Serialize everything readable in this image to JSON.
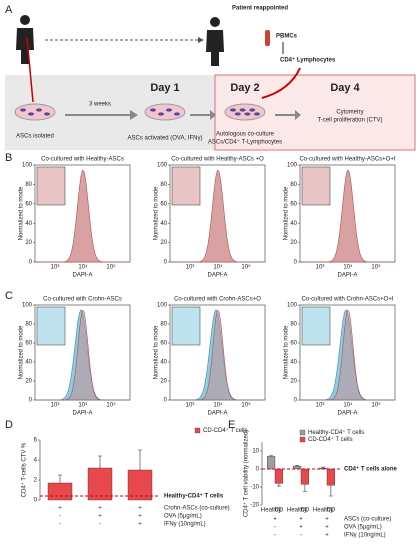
{
  "panel_a": {
    "label": "A",
    "patient": "Patient reappointed",
    "pbmcs": "PBMCs",
    "cd4": "CD4⁺ Lymphocytes",
    "isolated": "ASCs isolated",
    "weeks": "3 weeks",
    "day1": "Day 1",
    "activated": "ASCs activated (OVA, IFNγ)",
    "day2": "Day 2",
    "day4": "Day 4",
    "coculture": [
      "Autologous co-culture",
      "ASCs/CD4⁺ T-Lymphocytes"
    ],
    "cytometry": [
      "Cytometry",
      "T-cell proliferation (CTV)"
    ]
  },
  "histogram_axes": {
    "ylabel": "Normalized to mode",
    "xlabel": "DAPI-A",
    "yticks": [
      0,
      20,
      40,
      60,
      80,
      100
    ],
    "xticks": [
      "10³",
      "10⁴",
      "10⁵"
    ]
  },
  "panel_b": {
    "label": "B",
    "titles": [
      "Co-cultured with Healthy-ASCs",
      "Co-cultured with Healthy-ASCs +O",
      "Co-cultured with Healthy-ASCs+O+I"
    ]
  },
  "panel_c": {
    "label": "C",
    "titles": [
      "Co-cultured with Crohn-ASCs",
      "Co-cultured with Crohn-ASCs+O",
      "Co-cultured with Crohn-ASCs+O+I"
    ]
  },
  "panel_d": {
    "label": "D",
    "type": "bar",
    "ylabel": "CD4⁺ T-cells CTV %",
    "ylim": [
      0,
      6
    ],
    "yticks": [
      0,
      2,
      4,
      6
    ],
    "series": [
      {
        "name": "CD-CD4⁺ T cells",
        "color": "#e8474c",
        "values": [
          1.7,
          3.2,
          3.0
        ],
        "errors": [
          0.8,
          1.2,
          2.0
        ]
      }
    ],
    "baseline": {
      "label": "Healthy-CD4⁺ T cells",
      "value": 0.4
    },
    "conditions": [
      {
        "name": "Crohn-ASCs (co-culture)",
        "signs": [
          "+",
          "+",
          "+"
        ]
      },
      {
        "name": "OVA (5µg/mL)",
        "signs": [
          "-",
          "+",
          "+"
        ]
      },
      {
        "name": "IFNγ (10ng/mL)",
        "signs": [
          "-",
          "-",
          "+"
        ]
      }
    ]
  },
  "panel_e": {
    "label": "E",
    "type": "bar",
    "ylabel": "CD4⁺ T cell viability (normalized)",
    "ylim": [
      -20,
      15
    ],
    "yticks": [
      -20,
      -10,
      0,
      10
    ],
    "groups": [
      [
        "Healthy",
        "CD"
      ],
      [
        "Healthy",
        "CD"
      ],
      [
        "Healthy",
        "CD"
      ]
    ],
    "series": [
      {
        "name": "Healthy-CD4⁺ T cells",
        "color": "#9e9e9e",
        "values": [
          7,
          1.5,
          0.5
        ],
        "errors": [
          0.5,
          0.5,
          0.5
        ]
      },
      {
        "name": "CD-CD4⁺ T cells",
        "color": "#e8474c",
        "values": [
          -8,
          -8.5,
          -9
        ],
        "errors": [
          1.5,
          4,
          6
        ]
      }
    ],
    "baseline": {
      "label": "CD4⁺ T cells alone",
      "value": 0
    },
    "conditions": [
      {
        "name": "ASCs (co-culture)",
        "signs": [
          "+",
          "+",
          "+"
        ]
      },
      {
        "name": "OVA (5µg/mL)",
        "signs": [
          "-",
          "+",
          "+"
        ]
      },
      {
        "name": "IFNγ (10ng/mL)",
        "signs": [
          "-",
          "-",
          "+"
        ]
      }
    ]
  }
}
